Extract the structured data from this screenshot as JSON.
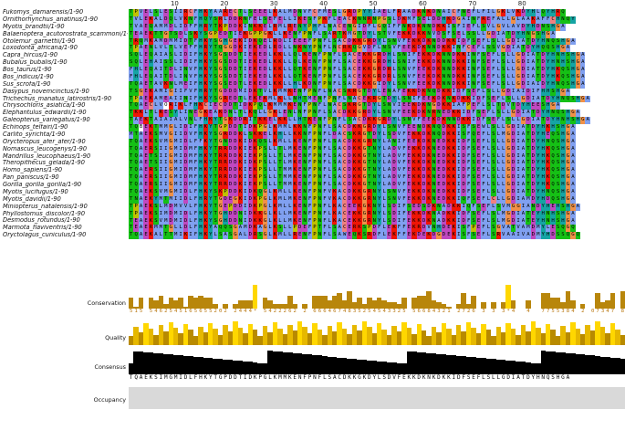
{
  "ruler": {
    "labels": [
      "10",
      "20",
      "30",
      "40",
      "50",
      "60",
      "70",
      "80"
    ]
  },
  "sequences": [
    {
      "name": "Fukomys_damarensis/1-90",
      "seq": "TPVELSLESIIRCFHKYAARECTLSEEELKALMDNVFCFMESLGRDPYYIAELFRAADKNKDNAICFNEFLFILGKLVKDYHLQYHRQ"
    },
    {
      "name": "Ornithorhynchus_anatinus/1-90",
      "seq": "TVLEKALDQLVKNFHQYSRLDDRNFELSEFELLIKESFPKFLEACKNNRNPGSLDKMFSELDDHKDGAINFREFALLGLAAKAFFCHNQY"
    },
    {
      "name": "Myotis_brandtii/1-90",
      "seq": "TVAEQAMMDLIDFFHRYTKPDDKINKKELRMLRENYPHFLNACENGIDFLGQIFFNKDKNNDKKISFIEFLSVLGVLAVDYHDNSHGA"
    },
    {
      "name": "Balaenoptera_acutorostrata_scammoni/1-90",
      "seq": "TEAEKTTGTSDLSKYSGPEDTIEKGPPGKLLKENFPNFLSARTKMGTDYLSTVFEKKDKKNVDSFSELSSLLGDIATDYHNGSHGA"
    },
    {
      "name": "Otolemur_garnettii/1-90",
      "seq": "TRQMKAMDMMIDTFHKYSGHGEKIDKQELRDLIEEEFPNFLSACDKKGRDYLSNVFEKKDKNDDKKIDFSEFLSLLGDIATDYHNQSHGA"
    },
    {
      "name": "Loxodonta_africana/1-90",
      "seq": "TPAENLVLTLVEFFHRYTQGGDKIEKEDLRDLLNKNYPNFLNCRKQGVDFLNSVFEEKDKNNDKKINFCEFLSSVGDIATDYHQQSHGA"
    },
    {
      "name": "Capra_hircus/1-90",
      "seq": "SQLEQAIASLIDIFHKYSGSDDTIEKEDLKKLLQLKENFPNFLSACEKKGRDHLSNIFEKKDKNNDKKINFSEFLSLLGDIATDYHNHSHGA"
    },
    {
      "name": "Bubalus_bubalis/1-90",
      "seq": "SQLEHAISSLIDIFHKYSGSDDTIEKEDLKKLLQLKENFPNFLSACEKKGRDHLSNIFEKKDKNNDKKINFSEFLSLLGDIATDYHNHSHGA"
    },
    {
      "name": "Bos_taurus/1-90",
      "seq": "FHLEQAITDLINVFHKYSGSDDTIEKEDLKKLLQTKENFPNFLSACEKKGRDRLSNVFEEKDKNNDKKINFSEFLSLLGDIATDYHKQSHGA"
    },
    {
      "name": "Bos_indicus/1-90",
      "seq": "FHLEQAITDLINVFHKYSGSDDTIEKEDLKKLLQTKENFPNFLSACEKKGRDRLSNVFEEKDKNNDKKINFSEFLSLLGDIATDYHKQSHGA"
    },
    {
      "name": "Sus_scrofa/1-90",
      "seq": "TQAETAVKNLMEIFHKYSGSEDTLEKEDLKKLLHLKDNFPNFLSACDKKGIDYLSNVFEEKDKNNDKKINFSEFLSLLGDIAIDYHNQSHGA"
    },
    {
      "name": "Dasypus_novemcinctus/1-90",
      "seq": "TSGEKAMIGIIFVFHRYTGDDDMIDKTVLKMMKENFPNFLNACSKRGTDYLENAFEKKDKNQDKKIDFSEFLSLLGDIAIDIFHHSHGA"
    },
    {
      "name": "Trichechus_manatus_latirostris/1-90",
      "seq": "TPAEKAMEAIINIFHKYSGREDTLEKEKMLKLLNHTMENFPNFLNACEKRGTDYLSNIFEEKDKNKDKKIDFSEFLSLLGDIATDYHNQSHGA"
    },
    {
      "name": "Chrysochloris_asiatica/1-90",
      "seq": "TQAECLVORIKLFHKCIECDDTIDKPQLKMMMKENFPNFLNACSKRGTDYLSNVIEEKDKNGDKKIAFPEFLSLTDVTDYHEESHGA"
    },
    {
      "name": "Elephantulus_edwardii/1-90",
      "seq": "TKKLTLRESYLINEGKEAKDNLTLKQLLGKLENLNFPNFLSACDKKGRDYLSNVFEEKDKNRNEDKKIDFSEFLSLLGDIATDYHNQSHGA"
    },
    {
      "name": "Galeopterus_variegatus/1-90",
      "seq": "TAEKTAIAIALVNLFHKYTGKDDRITKKELKKLLHTKENFPNFLSACDKKGRDYLSNVFEEKDKNNDKKIDFSEFLSLLGDIATDYHNHSHGA"
    },
    {
      "name": "Echinops_telfairi/1-90",
      "seq": "TQBEKTMMGLIDIFHKYTGPDDTIDKPGLKMMLKKNFPNFLSACDKKGRDYLSNVFEENDKNQDKKISFSEWLSLLGDIATDYHKHSHGA"
    },
    {
      "name": "Carlito_syrichta/1-90",
      "seq": "MTAEKSMVGIIDVFHKYSGRDDKLSKKELKHLLKKNFPNFLDACSKRGTDYLSDVFEKKDKNQDKKISFQEFLSLMGDIATDYHEQSHGA"
    },
    {
      "name": "Orycteropus_afer_afer/1-90",
      "seq": "TQAEKSVMGMIDLFFKYTGNDDKIDKQSLKMLLKENFPNFLSACDKKGRNYLANIFEEKDKNEDKKIDFSEFLSLLGDIATDYHNQSHGA"
    },
    {
      "name": "Nomascus_leucogenys/1-90",
      "seq": "TQAERSIIGMIDMFHKYTRRDDKIEKPSLLTLMKENFPNFLSACDKKGTNYLADVFEKKDKNEDKKIDFSEFLSLLGDIATDYHKQSHGA"
    },
    {
      "name": "Mandrillus_leucophaeus/1-90",
      "seq": "TQAETSIIGMIDMFHKYTRRDDKIEKPSLLTLMKENFPNFLSACDKKGTNYLADVFEKKDKNEDKKIDFSEFLSLLGDIATDYHKQSHGA"
    },
    {
      "name": "Theropithecus_gelada/1-90",
      "seq": "TQAETSIIGMIDMFHKYTRRDDKIDKPSLLTLMKENFPNFLSACDKKGTNYLADVFEKKDKNEDKKIDFSEFLSLLGDIATDYHKQSHGA"
    },
    {
      "name": "Homo_sapiens/1-90",
      "seq": "TQAERSIIGMIDMFHKYTRRDDKIEKPSLLTMMKENFPNFLSACDKKGTNYLADVFEKKDKNEDKKIDFSEFLSLLGDIATDYHKQSHGA"
    },
    {
      "name": "Pan_paniscus/1-90",
      "seq": "TQAERSIIGMIDMFHKYTRRDDKIEKPSLLTMMKENFPNFLSACDKKGTNYLADVFEKKDKNEDKKIDFSEFLSLLGDIATDYHKQSHGA"
    },
    {
      "name": "Gorilla_gorilla_gorilla/1-90",
      "seq": "TQAERSIIGMIDMFHKYTRRDDKIEKPSLLTMMKENFPNFLSACDKKGTNYLADVFEKKDKNEDKKIDFSEFLSLLGDIATDYHKQSHGA"
    },
    {
      "name": "Myotis_lucifugus/1-90",
      "seq": "TQAEKSVMGMIDLFHKYSKPDDKIDKQGLKMLLKENFPNFVKACDKKGRNYLSNVFEKKDKNEDKKIDFSEFLSLLGDIATDYHNQSHGA"
    },
    {
      "name": "Myotis_davidii/1-90",
      "seq": "TNAEKYMTMIIDLFHRYTGDEGKIDKPGLKMLMKENFPNFVKACDKKGRNYLSNVFEKKDKNEDKKIQFSEFLCLLGDIAMDYHDQSHGA"
    },
    {
      "name": "Miniopterus_natalensis/1-90",
      "seq": "TPAEKSLMDMVVLFHKYTGEPDDIDKPGLKMLLKENFPNFLKACEEKGKNYLSDIFSEDSDKNADKKIQFSEFLSVMGGIANDYHEHSHGA"
    },
    {
      "name": "Phyllostomus_discolor/1-90",
      "seq": "TPAEKSIMDMIDLFHKYTGHDDNIDKKGLKLLMKENFPNFLKACEKKGRNYLSDIFEKKDKNADKKIDFSEFLSLMGDIATEYHNHSHGA"
    },
    {
      "name": "Desmodus_rotundus/1-90",
      "seq": "TEAEKSVMDMIDLFHKYSGHDDNIDKKGLKLLMKENFPNFLKACEKKGRNYLSDIFEKKDKNADKKIDFSEFLSLMGDIATEYHNHSHGA"
    },
    {
      "name": "Marmota_flaviventris/1-90",
      "seq": "TEAERMMTGLLDLFHKYAQQSGAMDKAGLKSLLPDEFPTFLSACERKSPDFLEKFFEKRDVNHDEKISFPEFLSGVATVAMDMYLESQGQ"
    },
    {
      "name": "Oryctolagus_cuniculus/1-90",
      "seq": "TQAEKALTTMIKIFHKYLSASGALDRSGLKMLLRENFPNFLSAWEQKSRDFLEKFFEKDEKDGDEKISFSEFLSRVAAIVADMYHDSSQGQ"
    }
  ],
  "tracks": {
    "conservation_label": "Conservation",
    "quality_label": "Quality",
    "consensus_label": "Consensus",
    "occupancy_label": "Occupancy"
  },
  "conservation_digits": "515 5462545165655202 2444* 5422262 2 6664674835254543325 56684321 2726 3 3 3*4  4  7755384 2 07347 8335643",
  "consensus_seq": "TQAEKSIMGMIDLFHKYTGPDDTIDKPGLKMMKENFPNFLSACDKKGKDYLSDVFEKKDKNKDKKIDFSEFLSLLGDIATDYHNQSHGA",
  "colors": {
    "A": "#80a0f0",
    "I": "#80a0f0",
    "L": "#80a0f0",
    "M": "#80a0f0",
    "F": "#80a0f0",
    "W": "#80a0f0",
    "V": "#80a0f0",
    "C": "#f08080",
    "K": "#f01505",
    "R": "#f01505",
    "E": "#c048c0",
    "D": "#c048c0",
    "N": "#15c015",
    "Q": "#15c015",
    "S": "#15c015",
    "T": "#15c015",
    "G": "#f09048",
    "P": "#c0c000",
    "H": "#15a4a4",
    "Y": "#15a4a4",
    "conservation_bar": "#b8860b",
    "quality_bar": "#ffd700",
    "consensus_bar": "#000000",
    "occupancy": "#d9d9d9"
  }
}
